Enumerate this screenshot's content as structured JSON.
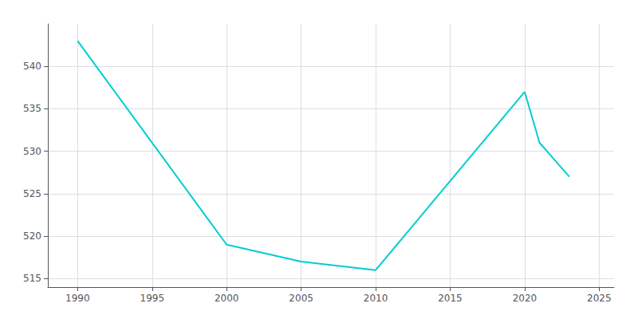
{
  "chart_data": {
    "type": "line",
    "x": [
      1990,
      2000,
      2005,
      2010,
      2020,
      2021,
      2022,
      2023
    ],
    "values": [
      543,
      519,
      517,
      516,
      537,
      531,
      529,
      527
    ],
    "color": "#00CED1",
    "xlim": [
      1988,
      2026
    ],
    "ylim": [
      514,
      545
    ],
    "xticks": [
      1990,
      1995,
      2000,
      2005,
      2010,
      2015,
      2020,
      2025
    ],
    "yticks": [
      515,
      520,
      525,
      530,
      535,
      540
    ],
    "grid": true
  }
}
